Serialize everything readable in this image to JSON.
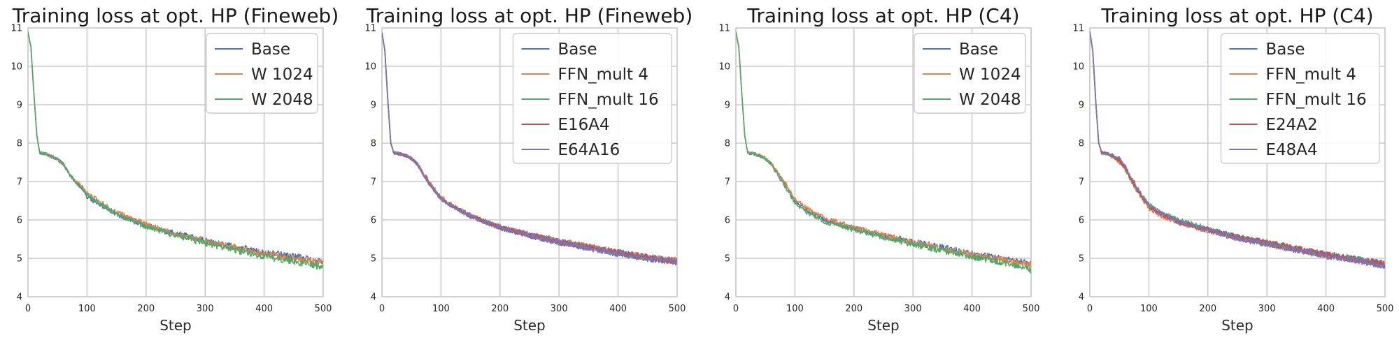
{
  "chart_data": [
    {
      "type": "line",
      "title": "Training loss at opt. HP  (Fineweb)",
      "xlabel": "Step",
      "ylabel": "",
      "xlim": [
        0,
        500
      ],
      "ylim": [
        4,
        11
      ],
      "xticks": [
        "0",
        "100",
        "200",
        "300",
        "400",
        "500"
      ],
      "yticks": [
        "4",
        "5",
        "6",
        "7",
        "8",
        "9",
        "10",
        "11"
      ],
      "grid": true,
      "legend": "top-right",
      "series": [
        {
          "name": "Base",
          "color": "#4c72b0",
          "x": [
            0,
            5,
            10,
            15,
            20,
            30,
            40,
            50,
            60,
            70,
            80,
            90,
            100,
            120,
            150,
            200,
            250,
            300,
            350,
            400,
            450,
            500
          ],
          "y": [
            10.9,
            10.5,
            9.3,
            8.2,
            7.75,
            7.72,
            7.65,
            7.58,
            7.45,
            7.2,
            7.0,
            6.85,
            6.6,
            6.4,
            6.15,
            5.85,
            5.65,
            5.45,
            5.3,
            5.15,
            5.05,
            4.92
          ]
        },
        {
          "name": "W 1024",
          "color": "#dd8452",
          "x": [
            0,
            5,
            10,
            15,
            20,
            30,
            40,
            50,
            60,
            70,
            80,
            90,
            100,
            120,
            150,
            200,
            250,
            300,
            350,
            400,
            450,
            500
          ],
          "y": [
            10.9,
            10.5,
            9.3,
            8.2,
            7.75,
            7.72,
            7.65,
            7.58,
            7.45,
            7.2,
            7.0,
            6.9,
            6.7,
            6.5,
            6.2,
            5.88,
            5.63,
            5.45,
            5.28,
            5.12,
            5.0,
            4.88
          ]
        },
        {
          "name": "W 2048",
          "color": "#55a868",
          "x": [
            0,
            5,
            10,
            15,
            20,
            30,
            40,
            50,
            60,
            70,
            80,
            90,
            100,
            120,
            150,
            200,
            250,
            300,
            350,
            400,
            450,
            500
          ],
          "y": [
            10.9,
            10.5,
            9.3,
            8.2,
            7.75,
            7.72,
            7.65,
            7.58,
            7.45,
            7.2,
            7.0,
            6.85,
            6.65,
            6.45,
            6.15,
            5.82,
            5.6,
            5.4,
            5.22,
            5.05,
            4.92,
            4.78
          ]
        }
      ]
    },
    {
      "type": "line",
      "title": "Training loss at opt. HP  (Fineweb)",
      "xlabel": "Step",
      "ylabel": "",
      "xlim": [
        0,
        500
      ],
      "ylim": [
        4,
        11
      ],
      "xticks": [
        "0",
        "100",
        "200",
        "300",
        "400",
        "500"
      ],
      "yticks": [
        "4",
        "5",
        "6",
        "7",
        "8",
        "9",
        "10",
        "11"
      ],
      "grid": true,
      "legend": "top-right",
      "series": [
        {
          "name": "Base",
          "color": "#4c72b0",
          "x": [
            0,
            5,
            10,
            15,
            20,
            30,
            40,
            50,
            60,
            70,
            80,
            90,
            100,
            120,
            150,
            200,
            250,
            300,
            350,
            400,
            450,
            500
          ],
          "y": [
            10.9,
            10.4,
            9.1,
            8.0,
            7.75,
            7.72,
            7.68,
            7.6,
            7.45,
            7.2,
            6.95,
            6.75,
            6.55,
            6.35,
            6.1,
            5.8,
            5.6,
            5.42,
            5.28,
            5.15,
            5.02,
            4.92
          ]
        },
        {
          "name": "FFN_mult 4",
          "color": "#dd8452",
          "x": [
            0,
            5,
            10,
            15,
            20,
            30,
            40,
            50,
            60,
            70,
            80,
            90,
            100,
            120,
            150,
            200,
            250,
            300,
            350,
            400,
            450,
            500
          ],
          "y": [
            10.9,
            10.4,
            9.1,
            8.0,
            7.75,
            7.72,
            7.68,
            7.62,
            7.48,
            7.25,
            7.0,
            6.8,
            6.6,
            6.38,
            6.12,
            5.82,
            5.62,
            5.45,
            5.3,
            5.15,
            5.02,
            4.95
          ]
        },
        {
          "name": "FFN_mult 16",
          "color": "#55a868",
          "x": [
            0,
            5,
            10,
            15,
            20,
            30,
            40,
            50,
            60,
            70,
            80,
            90,
            100,
            120,
            150,
            200,
            250,
            300,
            350,
            400,
            450,
            500
          ],
          "y": [
            10.9,
            10.4,
            9.1,
            8.0,
            7.75,
            7.72,
            7.68,
            7.6,
            7.45,
            7.2,
            6.95,
            6.75,
            6.55,
            6.35,
            6.1,
            5.8,
            5.6,
            5.42,
            5.28,
            5.12,
            5.0,
            4.9
          ]
        },
        {
          "name": "E16A4",
          "color": "#c44e52",
          "x": [
            0,
            5,
            10,
            15,
            20,
            30,
            40,
            50,
            60,
            70,
            80,
            90,
            100,
            120,
            150,
            200,
            250,
            300,
            350,
            400,
            450,
            500
          ],
          "y": [
            10.9,
            10.4,
            9.1,
            8.0,
            7.75,
            7.72,
            7.68,
            7.6,
            7.45,
            7.2,
            6.95,
            6.75,
            6.55,
            6.35,
            6.1,
            5.8,
            5.6,
            5.43,
            5.3,
            5.15,
            5.02,
            4.93
          ]
        },
        {
          "name": "E64A16",
          "color": "#8172b3",
          "x": [
            0,
            5,
            10,
            15,
            20,
            30,
            40,
            50,
            60,
            70,
            80,
            90,
            100,
            120,
            150,
            200,
            250,
            300,
            350,
            400,
            450,
            500
          ],
          "y": [
            10.9,
            10.4,
            9.1,
            8.0,
            7.75,
            7.72,
            7.68,
            7.6,
            7.45,
            7.2,
            6.95,
            6.75,
            6.55,
            6.35,
            6.1,
            5.8,
            5.6,
            5.42,
            5.27,
            5.12,
            5.0,
            4.9
          ]
        }
      ]
    },
    {
      "type": "line",
      "title": "Training loss at opt. HP (C4)",
      "xlabel": "Step",
      "ylabel": "",
      "xlim": [
        0,
        500
      ],
      "ylim": [
        4,
        11
      ],
      "xticks": [
        "0",
        "100",
        "200",
        "300",
        "400",
        "500"
      ],
      "yticks": [
        "4",
        "5",
        "6",
        "7",
        "8",
        "9",
        "10",
        "11"
      ],
      "grid": true,
      "legend": "top-right",
      "series": [
        {
          "name": "Base",
          "color": "#4c72b0",
          "x": [
            0,
            5,
            10,
            15,
            20,
            30,
            40,
            50,
            60,
            70,
            80,
            90,
            100,
            120,
            150,
            200,
            250,
            300,
            350,
            400,
            450,
            500
          ],
          "y": [
            10.9,
            10.5,
            9.3,
            8.2,
            7.75,
            7.72,
            7.68,
            7.6,
            7.45,
            7.25,
            7.0,
            6.75,
            6.5,
            6.25,
            6.0,
            5.78,
            5.58,
            5.42,
            5.28,
            5.12,
            5.0,
            4.85
          ]
        },
        {
          "name": "W 1024",
          "color": "#dd8452",
          "x": [
            0,
            5,
            10,
            15,
            20,
            30,
            40,
            50,
            60,
            70,
            80,
            90,
            100,
            120,
            150,
            200,
            250,
            300,
            350,
            400,
            450,
            500
          ],
          "y": [
            10.9,
            10.5,
            9.3,
            8.2,
            7.75,
            7.72,
            7.68,
            7.6,
            7.45,
            7.25,
            7.05,
            6.8,
            6.55,
            6.3,
            6.05,
            5.8,
            5.6,
            5.42,
            5.25,
            5.1,
            4.97,
            4.8
          ]
        },
        {
          "name": "W 2048",
          "color": "#55a868",
          "x": [
            0,
            5,
            10,
            15,
            20,
            30,
            40,
            50,
            60,
            70,
            80,
            90,
            100,
            120,
            150,
            200,
            250,
            300,
            350,
            400,
            450,
            500
          ],
          "y": [
            10.9,
            10.5,
            9.3,
            8.2,
            7.75,
            7.72,
            7.68,
            7.6,
            7.45,
            7.2,
            6.95,
            6.7,
            6.45,
            6.2,
            5.95,
            5.75,
            5.55,
            5.38,
            5.2,
            5.05,
            4.9,
            4.7
          ]
        }
      ]
    },
    {
      "type": "line",
      "title": "Training loss at opt. HP (C4)",
      "xlabel": "Step",
      "ylabel": "",
      "xlim": [
        0,
        500
      ],
      "ylim": [
        4,
        11
      ],
      "xticks": [
        "0",
        "100",
        "200",
        "300",
        "400",
        "500"
      ],
      "yticks": [
        "4",
        "5",
        "6",
        "7",
        "8",
        "9",
        "10",
        "11"
      ],
      "grid": true,
      "legend": "top-right",
      "series": [
        {
          "name": "Base",
          "color": "#4c72b0",
          "x": [
            0,
            5,
            10,
            15,
            20,
            30,
            40,
            50,
            60,
            70,
            80,
            90,
            100,
            120,
            150,
            200,
            250,
            300,
            350,
            400,
            450,
            500
          ],
          "y": [
            10.9,
            10.4,
            9.1,
            8.0,
            7.75,
            7.72,
            7.65,
            7.55,
            7.35,
            7.05,
            6.8,
            6.55,
            6.35,
            6.15,
            5.95,
            5.75,
            5.55,
            5.4,
            5.25,
            5.1,
            4.98,
            4.85
          ]
        },
        {
          "name": "FFN_mult 4",
          "color": "#dd8452",
          "x": [
            0,
            5,
            10,
            15,
            20,
            30,
            40,
            50,
            60,
            70,
            80,
            90,
            100,
            120,
            150,
            200,
            250,
            300,
            350,
            400,
            450,
            500
          ],
          "y": [
            10.9,
            10.4,
            9.1,
            8.0,
            7.75,
            7.72,
            7.62,
            7.5,
            7.3,
            7.0,
            6.75,
            6.5,
            6.3,
            6.1,
            5.92,
            5.72,
            5.53,
            5.38,
            5.22,
            5.08,
            4.95,
            4.82
          ]
        },
        {
          "name": "FFN_mult 16",
          "color": "#55a868",
          "x": [
            0,
            5,
            10,
            15,
            20,
            30,
            40,
            50,
            60,
            70,
            80,
            90,
            100,
            120,
            150,
            200,
            250,
            300,
            350,
            400,
            450,
            500
          ],
          "y": [
            10.9,
            10.4,
            9.1,
            8.0,
            7.75,
            7.72,
            7.65,
            7.55,
            7.35,
            7.05,
            6.8,
            6.6,
            6.4,
            6.2,
            6.0,
            5.78,
            5.56,
            5.4,
            5.24,
            5.1,
            4.97,
            4.83
          ]
        },
        {
          "name": "E24A2",
          "color": "#c44e52",
          "x": [
            0,
            5,
            10,
            15,
            20,
            30,
            40,
            50,
            60,
            70,
            80,
            90,
            100,
            120,
            150,
            200,
            250,
            300,
            350,
            400,
            450,
            500
          ],
          "y": [
            10.9,
            10.4,
            9.1,
            8.0,
            7.75,
            7.72,
            7.65,
            7.55,
            7.35,
            7.05,
            6.8,
            6.55,
            6.35,
            6.15,
            5.95,
            5.75,
            5.55,
            5.4,
            5.25,
            5.1,
            4.97,
            4.85
          ]
        },
        {
          "name": "E48A4",
          "color": "#8172b3",
          "x": [
            0,
            5,
            10,
            15,
            20,
            30,
            40,
            50,
            60,
            70,
            80,
            90,
            100,
            120,
            150,
            200,
            250,
            300,
            350,
            400,
            450,
            500
          ],
          "y": [
            10.9,
            10.4,
            9.1,
            8.0,
            7.75,
            7.72,
            7.68,
            7.6,
            7.4,
            7.1,
            6.85,
            6.6,
            6.38,
            6.18,
            5.95,
            5.73,
            5.52,
            5.37,
            5.22,
            5.07,
            4.95,
            4.8
          ]
        }
      ]
    }
  ]
}
